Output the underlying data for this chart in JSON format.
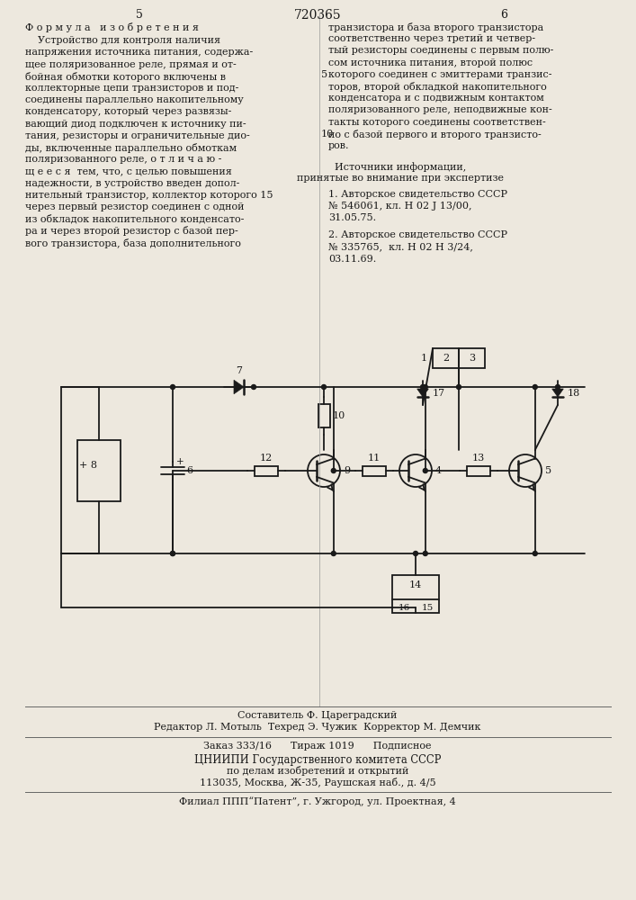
{
  "bg_color": "#ede8de",
  "text_color": "#1a1a1a",
  "page_num_left": "5",
  "page_num_center": "720365",
  "page_num_right": "6",
  "col1_header": "Ф о р м у л а   и з о б р е т е н и я",
  "col1_lines": [
    "    Устройство для контроля наличия",
    "напряжения источника питания, содержа-",
    "щее поляризованное реле, прямая и от-",
    "бойная обмотки которого включены в",
    "коллекторные цепи транзисторов и под-",
    "соединены параллельно накопительному",
    "конденсатору, который через развязы-",
    "вающий диод подключен к источнику пи-",
    "тания, резисторы и ограничительные дио-",
    "ды, включенные параллельно обмоткам",
    "поляризованного реле, о т л и ч а ю -",
    "щ е е с я  тем, что, с целью повышения",
    "надежности, в устройство введен допол-",
    "нительный транзистор, коллектор которого 15",
    "через первый резистор соединен с одной",
    "из обкладок накопительного конденсато-",
    "ра и через второй резистор с базой пер-",
    "вого транзистора, база дополнительного"
  ],
  "col2_lines": [
    "транзистора и база второго транзистора",
    "соответственно через третий и четвер-",
    "тый резисторы соединены с первым полю-",
    "сом источника питания, второй полюс",
    "которого соединен с эмиттерами транзис-",
    "торов, второй обкладкой накопительного",
    "конденсатора и с подвижным контактом",
    "поляризованного реле, неподвижные кон-",
    "такты которого соединены соответствен-",
    "но с базой первого и второго транзисто-",
    "ров."
  ],
  "col2_linenum_5_row": 4,
  "col2_linenum_10_row": 9,
  "sources_header1": "Источники информации,",
  "sources_header2": "принятые во внимание при экспертизе",
  "src1_lines": [
    "1. Авторское свидетельство СССР",
    "№ 546061, кл. Н 02 J 13/00,",
    "31.05.75."
  ],
  "src2_lines": [
    "2. Авторское свидетельство СССР",
    "№ 335765,  кл. Н 02 Н 3/24,",
    "03.11.69."
  ],
  "footer1": "Составитель Ф. Цареградский",
  "footer2": "Редактор Л. Мотыль  Техред Э. Чужик  Корректор М. Демчик",
  "footer3": "Заказ 333/16      Тираж 1019      Подписное",
  "footer4": "ЦНИИПИ Государственного комитета СССР",
  "footer5": "по делам изобретений и открытий",
  "footer6": "113035, Москва, Ж-35, Раушская наб., д. 4/5",
  "footer7": "Филиал ППП“Патент”, г. Ужгород, ул. Проектная, 4"
}
